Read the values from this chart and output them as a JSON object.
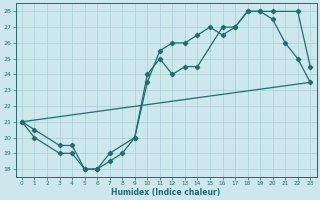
{
  "xlabel": "Humidex (Indice chaleur)",
  "xlim": [
    -0.5,
    23.5
  ],
  "ylim": [
    17.5,
    28.5
  ],
  "xticks": [
    0,
    1,
    2,
    3,
    4,
    5,
    6,
    7,
    8,
    9,
    10,
    11,
    12,
    13,
    14,
    15,
    16,
    17,
    18,
    19,
    20,
    21,
    22,
    23
  ],
  "yticks": [
    18,
    19,
    20,
    21,
    22,
    23,
    24,
    25,
    26,
    27,
    28
  ],
  "background_color": "#cde8ed",
  "grid_color": "#a8cfd6",
  "line_color": "#1e6e6e",
  "line1_x": [
    0,
    1,
    3,
    4,
    5,
    6,
    7,
    8,
    9,
    10,
    11,
    12,
    13,
    14,
    15,
    16,
    17,
    18,
    19,
    20,
    21,
    22,
    23
  ],
  "line1_y": [
    21,
    20,
    19,
    19,
    18,
    18,
    18.5,
    19,
    20,
    23.5,
    25.5,
    26,
    26,
    26.5,
    27,
    26.5,
    27,
    28,
    28,
    27.5,
    26,
    25,
    23.5
  ],
  "line2_x": [
    0,
    1,
    3,
    4,
    5,
    6,
    7,
    9,
    10,
    11,
    12,
    13,
    14,
    16,
    17,
    18,
    19,
    20,
    22,
    23
  ],
  "line2_y": [
    21,
    20.5,
    19.5,
    19.5,
    18,
    18,
    19,
    20,
    24,
    25,
    24,
    24.5,
    24.5,
    27,
    27,
    28,
    28,
    28,
    28,
    24.5
  ],
  "line3_x": [
    0,
    23
  ],
  "line3_y": [
    21,
    23.5
  ]
}
